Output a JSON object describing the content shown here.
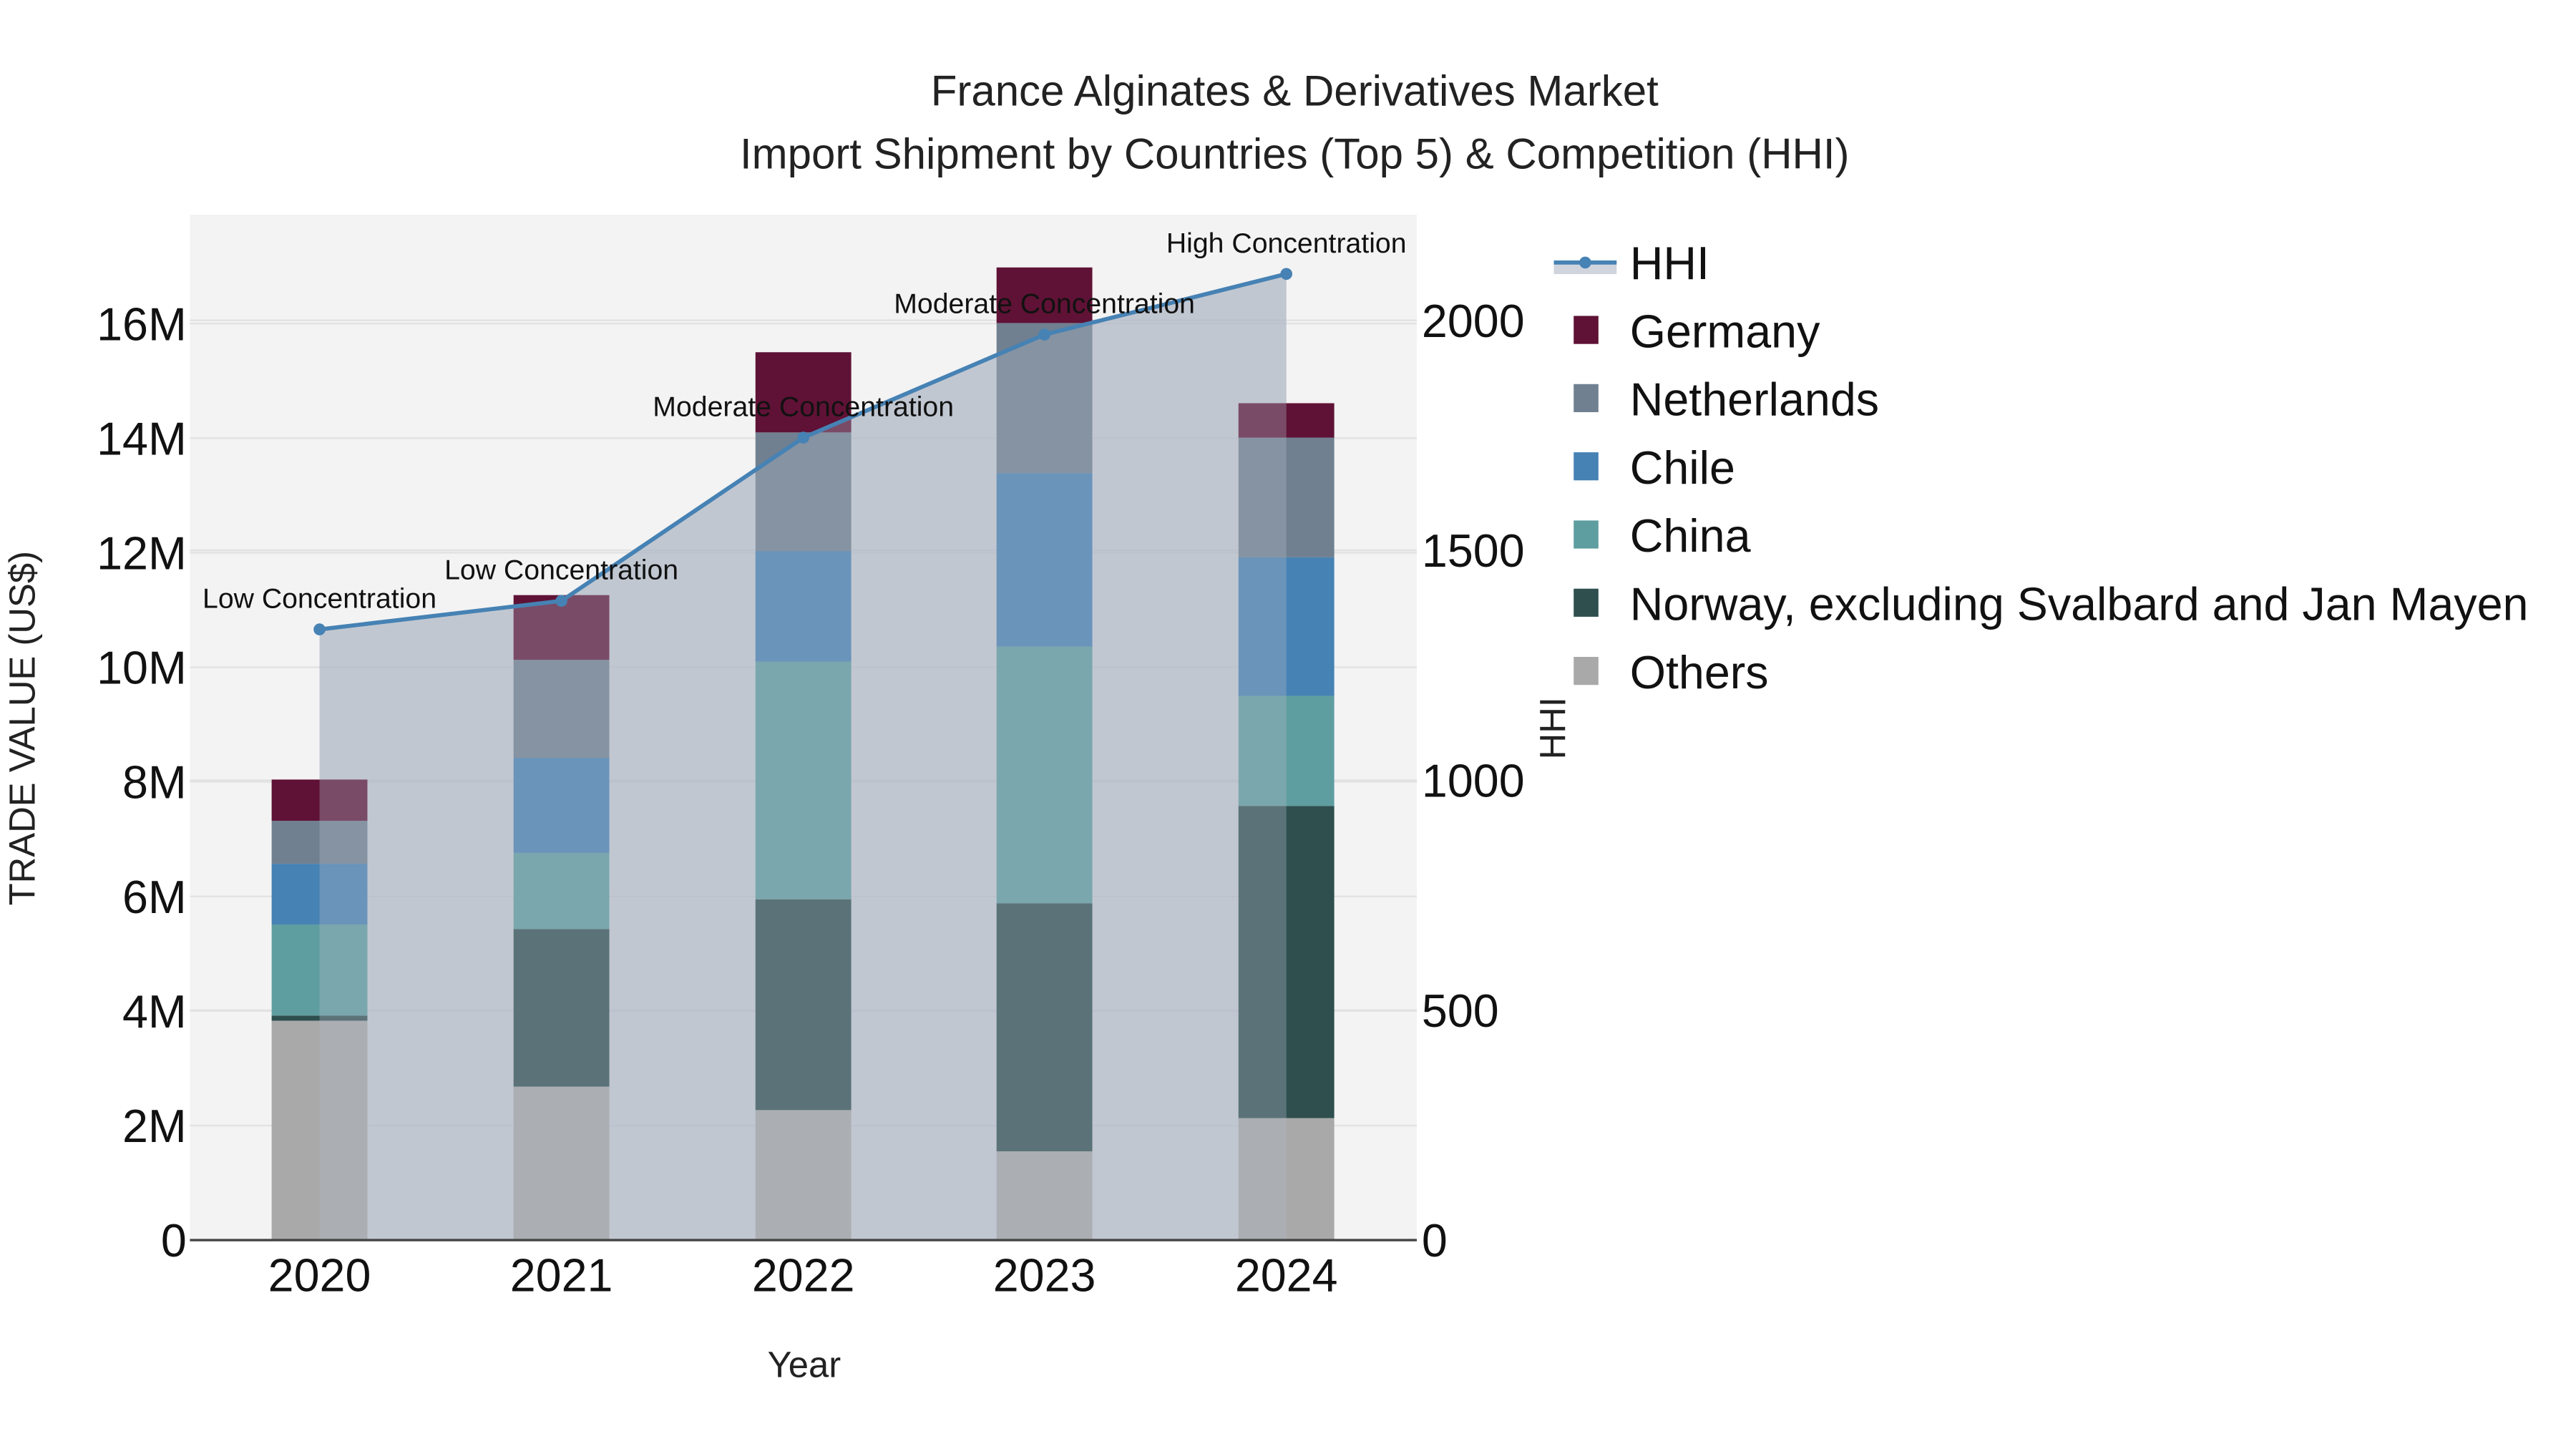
{
  "title": {
    "line1": "France Alginates & Derivatives Market",
    "line2": "Import Shipment by Countries (Top 5) & Competition (HHI)"
  },
  "axes": {
    "x_title": "Year",
    "y_left_title": "TRADE VALUE (US$)",
    "y_right_title": "HHI",
    "y_left_ticks": [
      "0",
      "2M",
      "4M",
      "6M",
      "8M",
      "10M",
      "12M",
      "14M",
      "16M"
    ],
    "y_right_ticks": [
      "0",
      "500",
      "1000",
      "1500",
      "2000"
    ],
    "x_ticks": [
      "2020",
      "2021",
      "2022",
      "2023",
      "2024"
    ]
  },
  "colors": {
    "plot_bg": "#f3f3f3",
    "grid": "#e2e2e2",
    "hhi_line": "#4682b4",
    "hhi_fill": "#b0b8c6",
    "Germany": "#5f1235",
    "Netherlands": "#708090",
    "Chile": "#4682b4",
    "China": "#5f9ea0",
    "Norway": "#2f4f4f",
    "Others": "#a9a9a9"
  },
  "legend": [
    {
      "key": "HHI",
      "label": "HHI",
      "type": "line"
    },
    {
      "key": "Germany",
      "label": "Germany",
      "type": "bar"
    },
    {
      "key": "Netherlands",
      "label": "Netherlands",
      "type": "bar"
    },
    {
      "key": "Chile",
      "label": "Chile",
      "type": "bar"
    },
    {
      "key": "China",
      "label": "China",
      "type": "bar"
    },
    {
      "key": "Norway",
      "label": "Norway, excluding Svalbard and Jan Mayen",
      "type": "bar"
    },
    {
      "key": "Others",
      "label": "Others",
      "type": "bar"
    }
  ],
  "chart_data": {
    "type": "bar",
    "subtype": "stacked bar + line (dual axis)",
    "title": "France Alginates & Derivatives Market — Import Shipment by Countries (Top 5) & Competition (HHI)",
    "xlabel": "Year",
    "ylabel": "TRADE VALUE (US$)",
    "y2label": "HHI",
    "categories": [
      "2020",
      "2021",
      "2022",
      "2023",
      "2024"
    ],
    "ylim": [
      0,
      17.9
    ],
    "y_unit": "M US$",
    "y2lim": [
      0,
      2230
    ],
    "grid": true,
    "legend_position": "right",
    "series": [
      {
        "name": "Others",
        "axis": "left",
        "values": [
          3.83,
          2.68,
          2.27,
          1.55,
          2.13
        ]
      },
      {
        "name": "Norway, excluding Svalbard and Jan Mayen",
        "axis": "left",
        "values": [
          0.09,
          2.75,
          3.68,
          4.33,
          5.45
        ]
      },
      {
        "name": "China",
        "axis": "left",
        "values": [
          1.59,
          1.33,
          4.15,
          4.48,
          1.92
        ]
      },
      {
        "name": "Chile",
        "axis": "left",
        "values": [
          1.06,
          1.66,
          1.93,
          3.03,
          2.42
        ]
      },
      {
        "name": "Netherlands",
        "axis": "left",
        "values": [
          0.75,
          1.71,
          2.07,
          2.62,
          2.09
        ]
      },
      {
        "name": "Germany",
        "axis": "left",
        "values": [
          0.72,
          1.13,
          1.4,
          0.97,
          0.6
        ]
      },
      {
        "name": "HHI",
        "axis": "right",
        "type": "line+area",
        "values": [
          1328,
          1390,
          1745,
          1969,
          2101
        ]
      }
    ],
    "totals": [
      8.04,
      11.26,
      15.5,
      16.98,
      14.61
    ],
    "annotations": [
      {
        "x": "2020",
        "text": "Low Concentration"
      },
      {
        "x": "2021",
        "text": "Low Concentration"
      },
      {
        "x": "2022",
        "text": "Moderate Concentration"
      },
      {
        "x": "2023",
        "text": "Moderate Concentration"
      },
      {
        "x": "2024",
        "text": "High Concentration"
      }
    ]
  }
}
